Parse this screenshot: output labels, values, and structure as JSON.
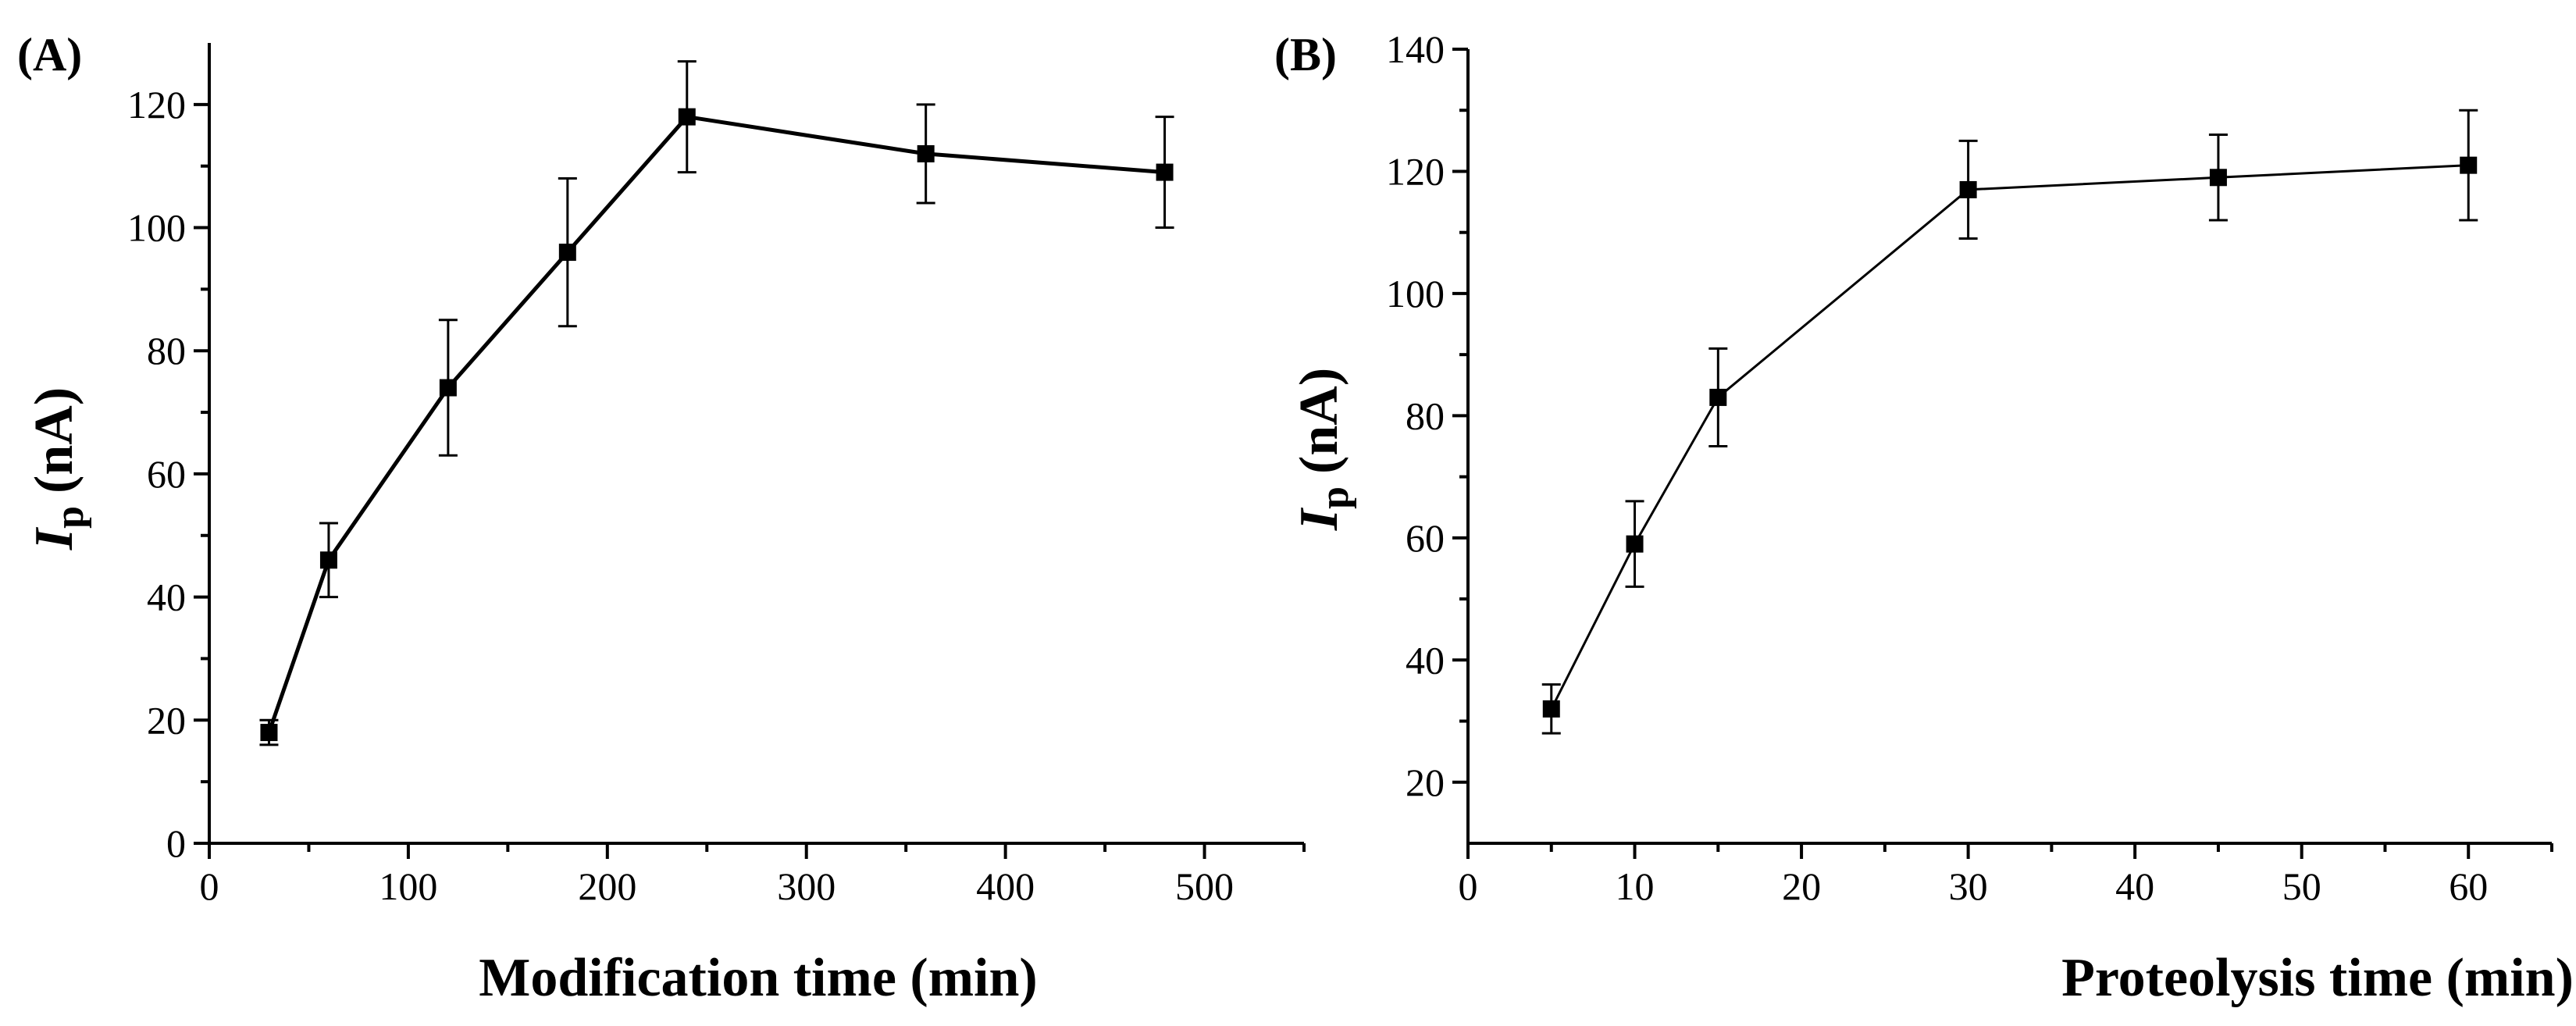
{
  "chart_data": [
    {
      "type": "line",
      "panel_label": "(A)",
      "xlabel": "Modification time (min)",
      "ylabel_main": "I",
      "ylabel_sub": "p",
      "ylabel_unit": "(nA)",
      "xlim": [
        0,
        550
      ],
      "ylim": [
        0,
        130
      ],
      "x_ticks": [
        0,
        100,
        200,
        300,
        400,
        500
      ],
      "y_ticks": [
        0,
        20,
        40,
        60,
        80,
        100,
        120
      ],
      "series": [
        {
          "name": "Ip",
          "x": [
            30,
            60,
            120,
            180,
            240,
            360,
            480
          ],
          "y": [
            18,
            46,
            74,
            96,
            118,
            112,
            109
          ],
          "err": [
            2,
            6,
            11,
            12,
            9,
            8,
            9
          ]
        }
      ]
    },
    {
      "type": "line",
      "panel_label": "(B)",
      "xlabel": "Proteolysis time (min)",
      "ylabel_main": "I",
      "ylabel_sub": "p",
      "ylabel_unit": "(nA)",
      "xlim": [
        0,
        65
      ],
      "ylim": [
        10,
        140
      ],
      "x_ticks": [
        0,
        10,
        20,
        30,
        40,
        50,
        60
      ],
      "y_ticks": [
        20,
        40,
        60,
        80,
        100,
        120,
        140
      ],
      "series": [
        {
          "name": "Ip",
          "x": [
            5,
            10,
            15,
            30,
            45,
            60
          ],
          "y": [
            32,
            59,
            83,
            117,
            119,
            121
          ],
          "err": [
            4,
            7,
            8,
            8,
            7,
            9
          ]
        }
      ]
    }
  ]
}
